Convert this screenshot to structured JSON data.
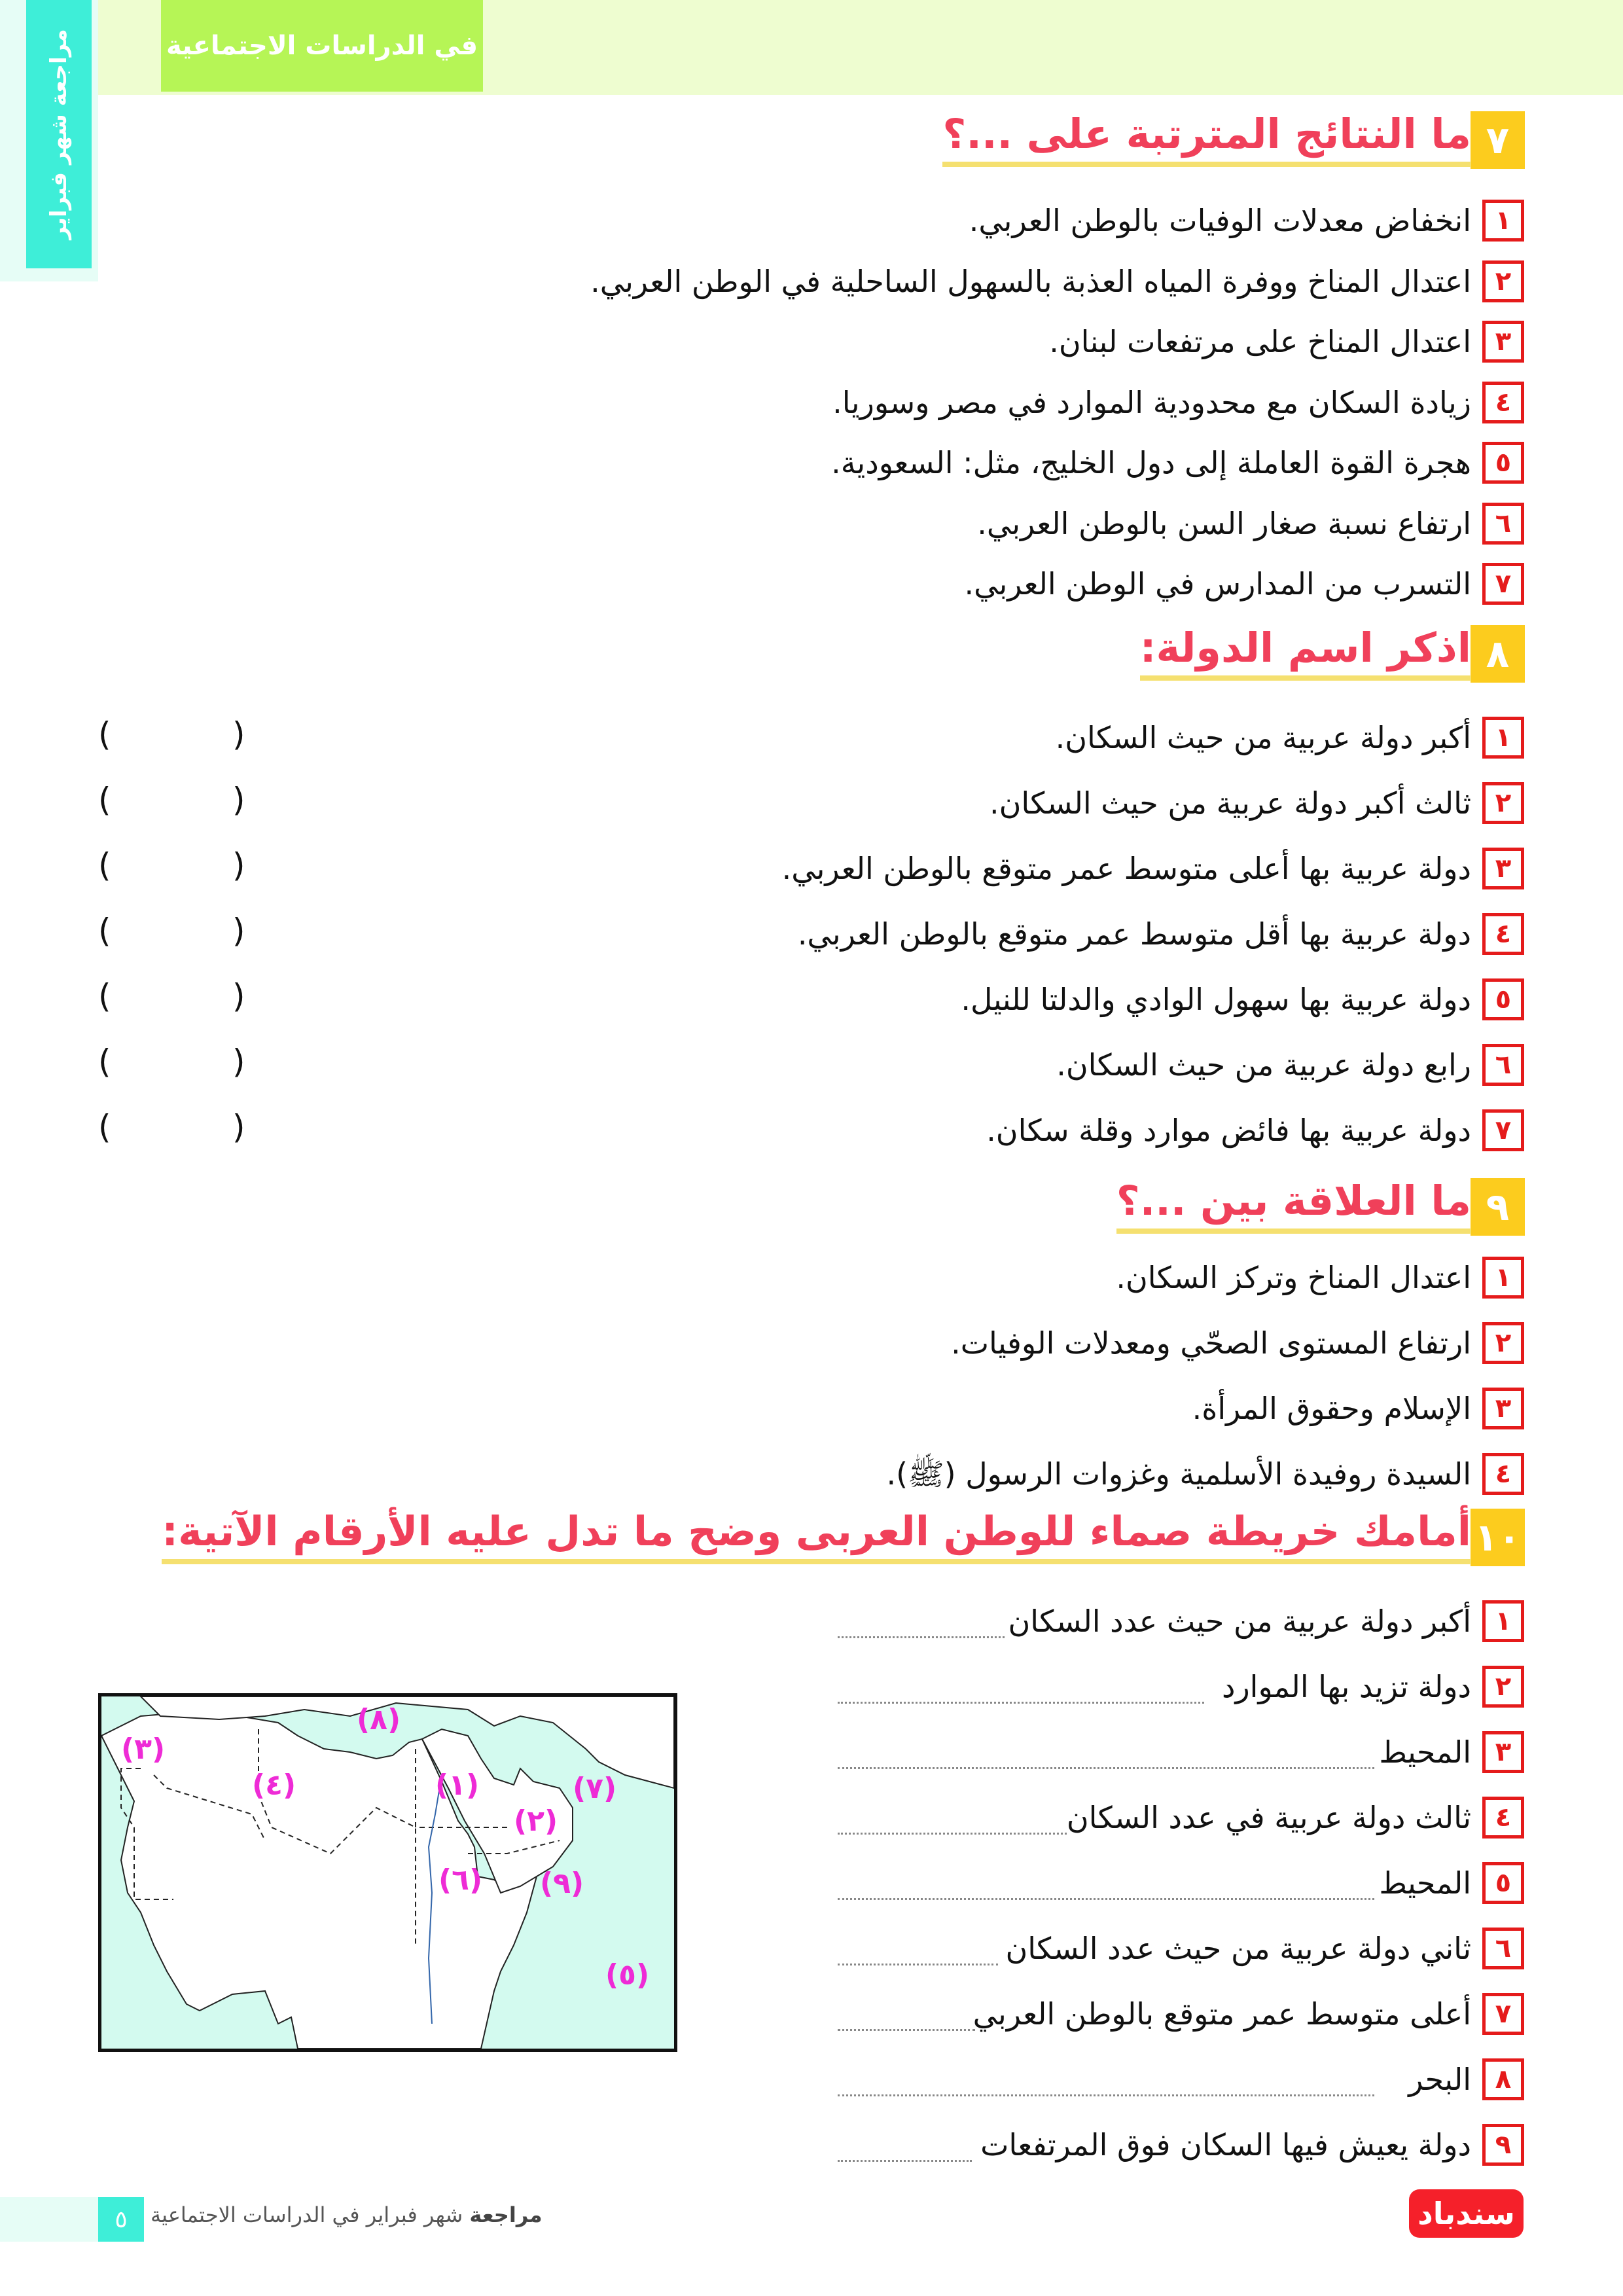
{
  "header": {
    "tab_title": "في الدراسات الاجتماعية",
    "side_text": "مراجعة شهر فبراير"
  },
  "sections": [
    {
      "number": "٧",
      "title": "ما النتائج المترتبة على ...؟",
      "items": [
        {
          "n": "١",
          "text": "انخفاض معدلات الوفيات بالوطن العربي."
        },
        {
          "n": "٢",
          "text": "اعتدال المناخ ووفرة المياه العذبة بالسهول الساحلية في الوطن العربي."
        },
        {
          "n": "٣",
          "text": "اعتدال المناخ على مرتفعات لبنان."
        },
        {
          "n": "٤",
          "text": "زيادة السكان مع محدودية الموارد في مصر وسوريا."
        },
        {
          "n": "٥",
          "text": "هجرة القوة العاملة إلى دول الخليج، مثل: السعودية."
        },
        {
          "n": "٦",
          "text": "ارتفاع نسبة صغار السن بالوطن العربي."
        },
        {
          "n": "٧",
          "text": "التسرب من المدارس في الوطن العربي."
        }
      ]
    },
    {
      "number": "٨",
      "title": "اذكر اسم الدولة:",
      "items": [
        {
          "n": "١",
          "text": "أكبر دولة عربية من حيث السكان."
        },
        {
          "n": "٢",
          "text": "ثالث أكبر دولة عربية من حيث السكان."
        },
        {
          "n": "٣",
          "text": "دولة عربية بها أعلى متوسط عمر متوقع بالوطن العربي."
        },
        {
          "n": "٤",
          "text": "دولة عربية بها أقل متوسط عمر متوقع بالوطن العربي."
        },
        {
          "n": "٥",
          "text": "دولة عربية بها سهول الوادي والدلتا للنيل."
        },
        {
          "n": "٦",
          "text": "رابع دولة عربية من حيث السكان."
        },
        {
          "n": "٧",
          "text": "دولة عربية بها فائض موارد وقلة سكان."
        }
      ],
      "paren_open": "(",
      "paren_close": ")"
    },
    {
      "number": "٩",
      "title": "ما العلاقة بين ...؟",
      "items": [
        {
          "n": "١",
          "text": "اعتدال المناخ وتركز السكان."
        },
        {
          "n": "٢",
          "text": "ارتفاع المستوى الصحّي ومعدلات الوفيات."
        },
        {
          "n": "٣",
          "text": "الإسلام وحقوق المرأة."
        },
        {
          "n": "٤",
          "text": "السيدة روفيدة الأسلمية وغزوات الرسول (ﷺ)."
        }
      ]
    },
    {
      "number": "١٠",
      "title": "أمامك خريطة صماء للوطن العربى وضح ما تدل عليه الأرقام الآتية:",
      "items": [
        {
          "n": "١",
          "text": "أكبر دولة عربية من حيث عدد السكان"
        },
        {
          "n": "٢",
          "text": "دولة تزيد بها الموارد"
        },
        {
          "n": "٣",
          "text": "المحيط"
        },
        {
          "n": "٤",
          "text": "ثالث دولة عربية في عدد السكان"
        },
        {
          "n": "٥",
          "text": "المحيط"
        },
        {
          "n": "٦",
          "text": "ثاني دولة عربية من حيث عدد السكان"
        },
        {
          "n": "٧",
          "text": "أعلى متوسط عمر متوقع بالوطن العربي"
        },
        {
          "n": "٨",
          "text": "البحر"
        },
        {
          "n": "٩",
          "text": "دولة يعيش فيها السكان فوق المرتفعات"
        }
      ]
    }
  ],
  "map": {
    "labels": [
      "(١)",
      "(٢)",
      "(٣)",
      "(٤)",
      "(٥)",
      "(٦)",
      "(٧)",
      "(٨)",
      "(٩)"
    ],
    "sea_color": "#d3faef",
    "label_color": "#ee2bd6"
  },
  "footer": {
    "page_number": "٥",
    "bold": "مراجعة",
    "text": "شهر فبراير في الدراسات الاجتماعية",
    "logo": "سندباد"
  },
  "colors": {
    "title": "#f0405a",
    "badge": "#fccc1e",
    "number_box": "#e51b1b",
    "accent_cyan": "#3eeed8",
    "accent_green": "#b6f556"
  }
}
